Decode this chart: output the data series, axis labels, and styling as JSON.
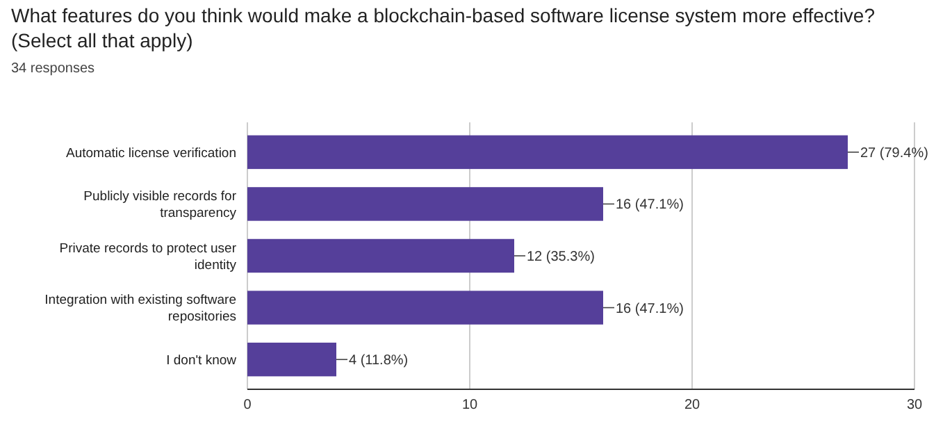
{
  "chart_data": {
    "type": "bar",
    "orientation": "horizontal",
    "title": "What features do you think would make a blockchain-based software license system more effective? (Select all that apply)",
    "subtitle": "34 responses",
    "categories": [
      "Automatic license verification",
      "Publicly visible records for transparency",
      "Private records to protect user identity",
      "Integration with existing software repositories",
      "I don't know"
    ],
    "values": [
      27,
      16,
      12,
      16,
      4
    ],
    "color": "#553f9a",
    "value_labels": [
      "27 (79.4%)",
      "16 (47.1%)",
      "12 (35.3%)",
      "16 (47.1%)",
      "4 (11.8%)"
    ],
    "xlim": [
      0,
      30
    ],
    "xticks": [
      0,
      10,
      20,
      30
    ],
    "grid": "x"
  }
}
